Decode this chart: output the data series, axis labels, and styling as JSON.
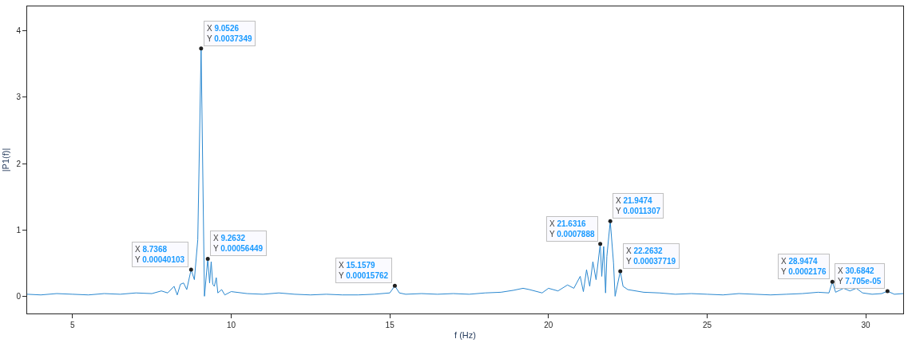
{
  "chart_data": {
    "type": "line",
    "xlabel": "f (Hz)",
    "ylabel": "|P1(f)|",
    "x": [
      3.57,
      4.0,
      4.5,
      5.0,
      5.5,
      6.0,
      6.5,
      7.0,
      7.5,
      7.8,
      8.0,
      8.2,
      8.3,
      8.4,
      8.5,
      8.6,
      8.7368,
      8.84,
      8.9474,
      9.0526,
      9.1579,
      9.2632,
      9.32,
      9.37,
      9.42,
      9.47,
      9.53,
      9.58,
      9.7,
      9.8,
      10.0,
      10.5,
      11.0,
      11.5,
      12.0,
      12.5,
      13.0,
      13.5,
      14.0,
      14.5,
      15.0,
      15.1579,
      15.3,
      15.5,
      16.0,
      16.5,
      17.0,
      17.5,
      18.0,
      18.5,
      18.9,
      19.2,
      19.4,
      19.8,
      20.0,
      20.3,
      20.6,
      20.8,
      21.0,
      21.1,
      21.2,
      21.3,
      21.4,
      21.5,
      21.6316,
      21.68,
      21.74,
      21.8,
      21.84,
      21.9474,
      22.05,
      22.1,
      22.2632,
      22.35,
      22.5,
      23.0,
      23.5,
      24.0,
      24.5,
      25.0,
      25.5,
      26.0,
      26.5,
      27.0,
      27.5,
      28.0,
      28.5,
      28.84,
      28.9474,
      29.05,
      29.3,
      29.5,
      29.7,
      29.9,
      30.2,
      30.5,
      30.6842,
      30.9,
      31.18
    ],
    "series": [
      {
        "color": "#2a88d0",
        "values": [
          0.03,
          0.02,
          0.04,
          0.03,
          0.02,
          0.04,
          0.03,
          0.05,
          0.04,
          0.08,
          0.05,
          0.15,
          0.02,
          0.18,
          0.2,
          0.1,
          0.40103,
          0.25,
          0.85,
          3.7349,
          0.0,
          0.56449,
          0.2,
          0.52,
          0.18,
          0.15,
          0.28,
          0.05,
          0.1,
          0.02,
          0.07,
          0.04,
          0.03,
          0.05,
          0.03,
          0.02,
          0.03,
          0.02,
          0.02,
          0.03,
          0.05,
          0.15762,
          0.05,
          0.03,
          0.04,
          0.03,
          0.04,
          0.03,
          0.05,
          0.06,
          0.09,
          0.12,
          0.1,
          0.05,
          0.12,
          0.08,
          0.17,
          0.12,
          0.3,
          0.07,
          0.4,
          0.15,
          0.52,
          0.25,
          0.7888,
          0.3,
          0.75,
          0.05,
          0.6,
          1.1307,
          0.5,
          0.0,
          0.37719,
          0.15,
          0.1,
          0.06,
          0.05,
          0.03,
          0.04,
          0.03,
          0.02,
          0.04,
          0.03,
          0.02,
          0.03,
          0.04,
          0.06,
          0.05,
          0.2176,
          0.06,
          0.12,
          0.08,
          0.12,
          0.05,
          0.03,
          0.04,
          0.07705,
          0.03,
          0.04
        ]
      }
    ],
    "xlim": [
      3.57,
      31.18
    ],
    "ylim": [
      -0.26,
      4.37
    ],
    "xticks": [
      5,
      10,
      15,
      20,
      25,
      30
    ],
    "yticks": [
      0,
      1,
      2,
      3,
      4
    ],
    "marker": "none",
    "line_style": "solid",
    "annotations": [
      {
        "text": "X 8.7368\nY 0.00040103",
        "x": 8.7368,
        "y": 0.40103
      },
      {
        "text": "X 9.0526\nY 0.0037349",
        "x": 9.0526,
        "y": 3.7349
      },
      {
        "text": "X 9.2632\nY 0.00056449",
        "x": 9.2632,
        "y": 0.56449
      },
      {
        "text": "X 15.1579\nY 0.00015762",
        "x": 15.1579,
        "y": 0.15762
      },
      {
        "text": "X 21.6316\nY 0.0007888",
        "x": 21.6316,
        "y": 0.7888
      },
      {
        "text": "X 21.9474\nY 0.0011307",
        "x": 21.9474,
        "y": 1.1307
      },
      {
        "text": "X 22.2632\nY 0.00037719",
        "x": 22.2632,
        "y": 0.37719
      },
      {
        "text": "X 28.9474\nY 0.0002176",
        "x": 28.9474,
        "y": 0.2176
      },
      {
        "text": "X 30.6842\nY 7.705e-05",
        "x": 30.6842,
        "y": 0.07705
      }
    ]
  }
}
